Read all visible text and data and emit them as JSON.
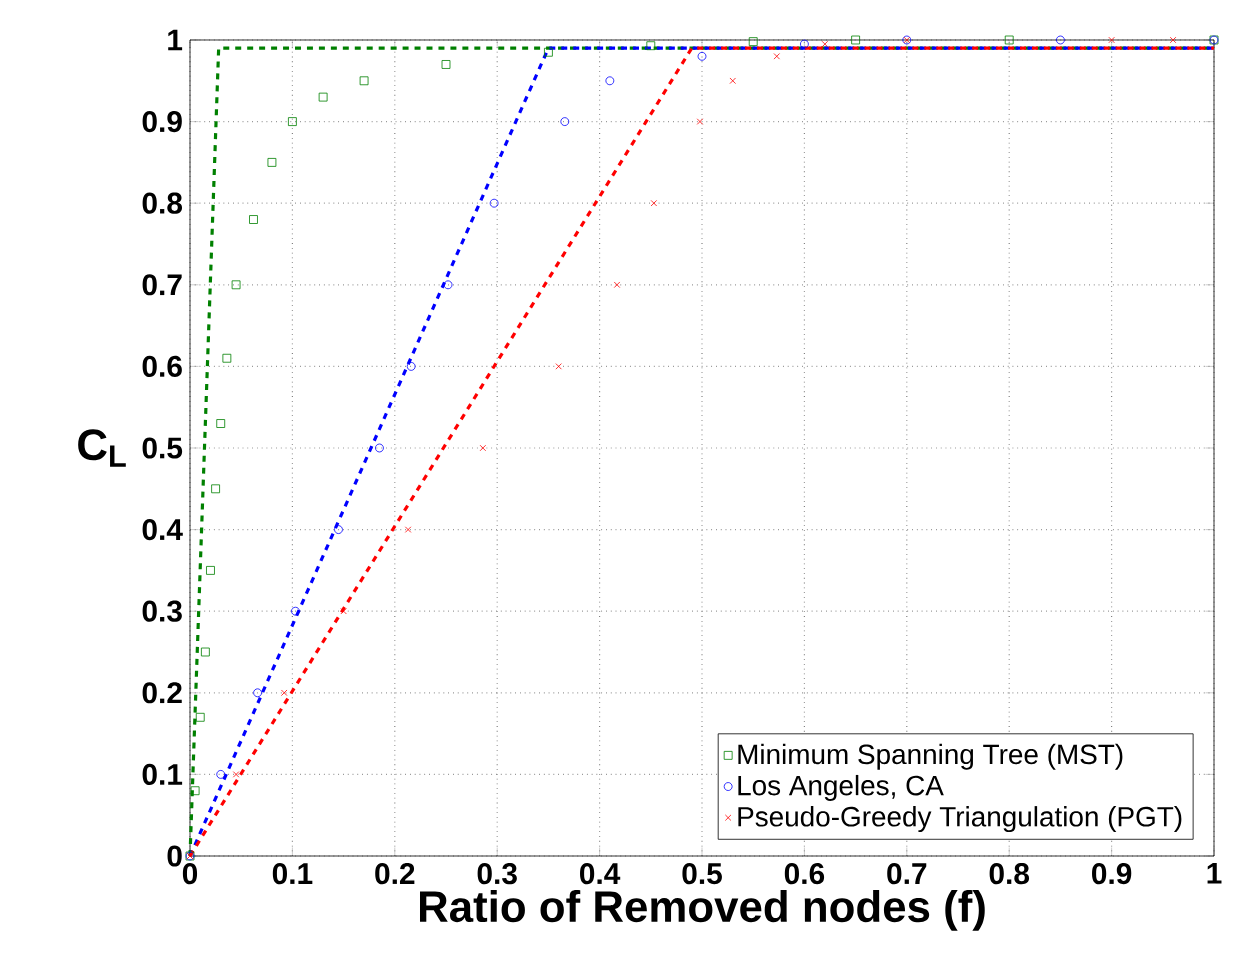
{
  "chart_data": {
    "type": "scatter",
    "xlabel": "Ratio of Removed nodes (f)",
    "ylabel": "C$_{L}$",
    "xlim": [
      0,
      1
    ],
    "ylim": [
      0,
      1
    ],
    "xticks": [
      0,
      0.1,
      0.2,
      0.3,
      0.4,
      0.5,
      0.6,
      0.7,
      0.8,
      0.9,
      1
    ],
    "yticks": [
      0,
      0.1,
      0.2,
      0.3,
      0.4,
      0.5,
      0.6,
      0.7,
      0.8,
      0.9,
      1
    ],
    "grid": true,
    "legend": "bottom right",
    "series": [
      {
        "name": "Minimum Spanning Tree (MST)",
        "color": "#008000",
        "marker": "square",
        "x": [
          0,
          0.005,
          0.01,
          0.015,
          0.02,
          0.025,
          0.03,
          0.036,
          0.045,
          0.062,
          0.08,
          0.1,
          0.13,
          0.17,
          0.25,
          0.35,
          0.45,
          0.55,
          0.65,
          0.8,
          1
        ],
        "values": [
          0,
          0.08,
          0.17,
          0.25,
          0.35,
          0.45,
          0.53,
          0.61,
          0.7,
          0.78,
          0.85,
          0.9,
          0.93,
          0.95,
          0.97,
          0.985,
          0.993,
          0.998,
          1,
          1,
          1
        ]
      },
      {
        "name": "Los Angeles, CA",
        "color": "#0000ff",
        "marker": "circle",
        "x": [
          0,
          0.03,
          0.066,
          0.103,
          0.145,
          0.185,
          0.216,
          0.252,
          0.297,
          0.366,
          0.41,
          0.5,
          0.6,
          0.7,
          0.85,
          1
        ],
        "values": [
          0,
          0.1,
          0.2,
          0.3,
          0.4,
          0.5,
          0.6,
          0.7,
          0.8,
          0.9,
          0.95,
          0.98,
          0.995,
          1,
          1,
          1
        ]
      },
      {
        "name": "Pseudo-Greedy Triangulation (PGT)",
        "color": "#ff0000",
        "marker": "cross",
        "x": [
          0,
          0.045,
          0.092,
          0.15,
          0.213,
          0.286,
          0.36,
          0.417,
          0.453,
          0.498,
          0.53,
          0.573,
          0.62,
          0.7,
          0.9,
          0.96
        ],
        "values": [
          0,
          0.1,
          0.2,
          0.3,
          0.4,
          0.5,
          0.6,
          0.7,
          0.8,
          0.9,
          0.95,
          0.98,
          0.995,
          1,
          1,
          1
        ]
      },
      {
        "type": "line",
        "color": "#008000",
        "line_style": "dashed",
        "marker": "none",
        "x": [
          0,
          0.028,
          1
        ],
        "values": [
          0,
          0.99,
          0.99
        ]
      },
      {
        "type": "line",
        "color": "#0000ff",
        "line_style": "dashed",
        "marker": "none",
        "x": [
          0,
          0.35,
          1
        ],
        "values": [
          0,
          0.99,
          0.99
        ]
      },
      {
        "type": "line",
        "color": "#ff0000",
        "line_style": "dashed",
        "marker": "none",
        "x": [
          0,
          0.49,
          1
        ],
        "values": [
          0,
          0.99,
          0.99
        ]
      }
    ]
  }
}
